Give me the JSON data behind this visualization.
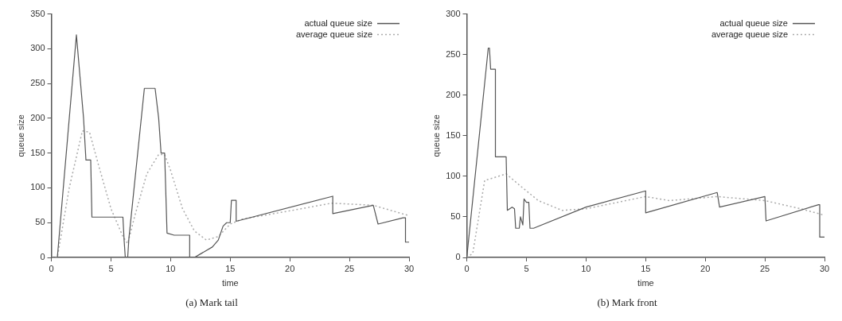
{
  "chart_data": [
    {
      "type": "line",
      "title": "(a) Mark tail",
      "xlabel": "time",
      "ylabel": "queue size",
      "xlim": [
        0,
        30
      ],
      "xticks": [
        0,
        5,
        10,
        15,
        20,
        25,
        30
      ],
      "ylim": [
        0,
        350
      ],
      "yticks": [
        0,
        50,
        100,
        150,
        200,
        250,
        300,
        350
      ],
      "grid": false,
      "legend": "top right",
      "marker": "none",
      "series": [
        {
          "name": "actual queue size",
          "color": "#555555",
          "line_style": "solid",
          "x": [
            0,
            0.5,
            2.1,
            2.7,
            2.9,
            3.3,
            3.4,
            6.0,
            6.1,
            6.2,
            6.4,
            6.5,
            7.8,
            8.7,
            9.0,
            9.2,
            9.5,
            9.7,
            10.3,
            11.6,
            11.6,
            12.0,
            12.5,
            13.5,
            14.0,
            14.4,
            14.7,
            15.0,
            15.1,
            15.5,
            15.5,
            23.6,
            23.6,
            27.0,
            27.4,
            29.5,
            29.7,
            29.7,
            30
          ],
          "values": [
            0,
            0,
            320,
            200,
            140,
            140,
            58,
            58,
            25,
            0,
            0,
            27,
            243,
            243,
            200,
            150,
            150,
            35,
            32,
            32,
            0,
            0,
            5,
            15,
            25,
            45,
            50,
            50,
            82,
            82,
            52,
            88,
            63,
            75,
            48,
            57,
            57,
            22,
            22
          ]
        },
        {
          "name": "average queue size",
          "color": "#aaaaaa",
          "line_style": "dotted",
          "x": [
            0,
            0.5,
            1.5,
            2.6,
            3.2,
            4,
            5,
            6,
            6.4,
            7,
            8,
            9,
            9.5,
            10,
            11,
            12,
            13,
            14,
            15,
            16,
            20,
            23.5,
            27,
            30
          ],
          "values": [
            0,
            0,
            100,
            182,
            180,
            130,
            70,
            30,
            20,
            60,
            120,
            148,
            148,
            125,
            70,
            38,
            25,
            30,
            48,
            55,
            67,
            78,
            75,
            60
          ]
        }
      ]
    },
    {
      "type": "line",
      "title": "(b) Mark front",
      "xlabel": "time",
      "ylabel": "queue size",
      "xlim": [
        0,
        30
      ],
      "xticks": [
        0,
        5,
        10,
        15,
        20,
        25,
        30
      ],
      "ylim": [
        0,
        300
      ],
      "yticks": [
        0,
        50,
        100,
        150,
        200,
        250,
        300
      ],
      "grid": false,
      "legend": "top right",
      "marker": "none",
      "series": [
        {
          "name": "actual queue size",
          "color": "#555555",
          "line_style": "solid",
          "x": [
            0,
            1.8,
            1.9,
            2.0,
            2.4,
            2.4,
            3.3,
            3.4,
            3.8,
            4.0,
            4.1,
            4.4,
            4.5,
            4.7,
            4.8,
            5.0,
            5.2,
            5.3,
            5.6,
            10,
            15,
            15,
            21,
            21.2,
            25,
            25.1,
            29.5,
            29.6,
            29.6,
            30
          ],
          "values": [
            0,
            258,
            258,
            232,
            232,
            124,
            124,
            58,
            62,
            60,
            36,
            36,
            50,
            40,
            72,
            68,
            68,
            36,
            36,
            62,
            82,
            55,
            80,
            62,
            75,
            45,
            65,
            65,
            25,
            25
          ]
        },
        {
          "name": "average queue size",
          "color": "#aaaaaa",
          "line_style": "dotted",
          "x": [
            0,
            0.5,
            1.5,
            2,
            3.3,
            4.5,
            6,
            8,
            10,
            15,
            17,
            21,
            25,
            28,
            30
          ],
          "values": [
            0,
            5,
            95,
            97,
            103,
            88,
            70,
            58,
            60,
            75,
            70,
            75,
            70,
            60,
            52
          ]
        }
      ]
    }
  ]
}
